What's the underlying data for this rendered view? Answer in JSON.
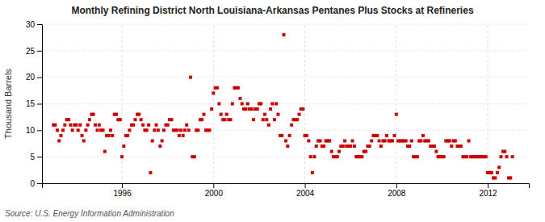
{
  "chart_data": {
    "type": "scatter",
    "title": "Monthly Refining District North Louisiana-Arkansas Pentanes Plus Stocks at Refineries",
    "ylabel": "Thousand Barrels",
    "source": "Source: U.S. Energy Information Administration",
    "color": "#cc0000",
    "marker": "square",
    "grid": true,
    "xlim": [
      1992.5,
      2013.8
    ],
    "xticks": [
      1996,
      2000,
      2004,
      2008,
      2012
    ],
    "ylim": [
      0,
      30
    ],
    "yticks": [
      0,
      5,
      10,
      15,
      20,
      25,
      30
    ],
    "x": [
      1993.0,
      1993.08,
      1993.17,
      1993.25,
      1993.33,
      1993.42,
      1993.5,
      1993.58,
      1993.67,
      1993.75,
      1993.83,
      1993.92,
      1994.0,
      1994.08,
      1994.17,
      1994.25,
      1994.33,
      1994.42,
      1994.5,
      1994.58,
      1994.67,
      1994.75,
      1994.83,
      1994.92,
      1995.0,
      1995.08,
      1995.17,
      1995.25,
      1995.33,
      1995.42,
      1995.5,
      1995.58,
      1995.67,
      1995.75,
      1995.83,
      1995.92,
      1996.0,
      1996.08,
      1996.17,
      1996.25,
      1996.33,
      1996.42,
      1996.5,
      1996.58,
      1996.67,
      1996.75,
      1996.83,
      1996.92,
      1997.0,
      1997.08,
      1997.17,
      1997.25,
      1997.33,
      1997.42,
      1997.5,
      1997.58,
      1997.67,
      1997.75,
      1997.83,
      1997.92,
      1998.0,
      1998.08,
      1998.17,
      1998.25,
      1998.33,
      1998.42,
      1998.5,
      1998.58,
      1998.67,
      1998.75,
      1998.83,
      1998.92,
      1999.0,
      1999.08,
      1999.17,
      1999.25,
      1999.33,
      1999.42,
      1999.5,
      1999.58,
      1999.67,
      1999.75,
      1999.83,
      1999.92,
      2000.0,
      2000.08,
      2000.17,
      2000.25,
      2000.33,
      2000.42,
      2000.5,
      2000.58,
      2000.67,
      2000.75,
      2000.83,
      2000.92,
      2001.0,
      2001.08,
      2001.17,
      2001.25,
      2001.33,
      2001.42,
      2001.5,
      2001.58,
      2001.67,
      2001.75,
      2001.83,
      2001.92,
      2002.0,
      2002.08,
      2002.17,
      2002.25,
      2002.33,
      2002.42,
      2002.5,
      2002.58,
      2002.67,
      2002.75,
      2002.83,
      2002.92,
      2003.0,
      2003.08,
      2003.17,
      2003.25,
      2003.33,
      2003.42,
      2003.5,
      2003.58,
      2003.67,
      2003.75,
      2003.83,
      2003.92,
      2004.0,
      2004.08,
      2004.17,
      2004.25,
      2004.33,
      2004.42,
      2004.5,
      2004.58,
      2004.67,
      2004.75,
      2004.83,
      2004.92,
      2005.0,
      2005.08,
      2005.17,
      2005.25,
      2005.33,
      2005.42,
      2005.5,
      2005.58,
      2005.67,
      2005.75,
      2005.83,
      2005.92,
      2006.0,
      2006.08,
      2006.17,
      2006.25,
      2006.33,
      2006.42,
      2006.5,
      2006.58,
      2006.67,
      2006.75,
      2006.83,
      2006.92,
      2007.0,
      2007.08,
      2007.17,
      2007.25,
      2007.33,
      2007.42,
      2007.5,
      2007.58,
      2007.67,
      2007.75,
      2007.83,
      2007.92,
      2008.0,
      2008.08,
      2008.17,
      2008.25,
      2008.33,
      2008.42,
      2008.5,
      2008.58,
      2008.67,
      2008.75,
      2008.83,
      2008.92,
      2009.0,
      2009.08,
      2009.17,
      2009.25,
      2009.33,
      2009.42,
      2009.5,
      2009.58,
      2009.67,
      2009.75,
      2009.83,
      2009.92,
      2010.0,
      2010.08,
      2010.17,
      2010.25,
      2010.33,
      2010.42,
      2010.5,
      2010.58,
      2010.67,
      2010.75,
      2010.83,
      2010.92,
      2011.0,
      2011.08,
      2011.17,
      2011.25,
      2011.33,
      2011.42,
      2011.5,
      2011.58,
      2011.67,
      2011.75,
      2011.83,
      2011.92,
      2012.0,
      2012.08,
      2012.17,
      2012.25,
      2012.33,
      2012.42,
      2012.5,
      2012.58,
      2012.67,
      2012.75,
      2012.83,
      2012.92,
      2013.0,
      2013.08
    ],
    "values": [
      11,
      11,
      10,
      8,
      9,
      10,
      11,
      12,
      12,
      11,
      10,
      11,
      11,
      10,
      11,
      9,
      8,
      10,
      11,
      12,
      13,
      13,
      11,
      10,
      11,
      10,
      10,
      6,
      9,
      9,
      10,
      9,
      13,
      13,
      12,
      12,
      5,
      7,
      9,
      9,
      10,
      11,
      11,
      12,
      13,
      13,
      12,
      11,
      10,
      10,
      11,
      2,
      8,
      10,
      11,
      10,
      7,
      8,
      10,
      11,
      11,
      12,
      12,
      10,
      10,
      10,
      9,
      10,
      9,
      10,
      11,
      10,
      20,
      5,
      5,
      10,
      10,
      12,
      12,
      13,
      10,
      10,
      10,
      14,
      17,
      18,
      18,
      15,
      13,
      12,
      12,
      13,
      12,
      12,
      15,
      18,
      18,
      18,
      16,
      15,
      14,
      14,
      15,
      14,
      14,
      12,
      14,
      14,
      15,
      15,
      12,
      13,
      12,
      11,
      14,
      15,
      12,
      15,
      13,
      9,
      9,
      28,
      8,
      7,
      9,
      11,
      12,
      12,
      12,
      13,
      14,
      14,
      9,
      9,
      8,
      5,
      2,
      5,
      7,
      8,
      8,
      7,
      7,
      8,
      8,
      8,
      6,
      5,
      5,
      5,
      6,
      7,
      7,
      8,
      7,
      7,
      7,
      8,
      7,
      5,
      5,
      5,
      5,
      6,
      6,
      7,
      7,
      8,
      9,
      9,
      9,
      8,
      7,
      8,
      8,
      9,
      8,
      8,
      8,
      9,
      13,
      8,
      8,
      8,
      8,
      8,
      7,
      7,
      8,
      5,
      5,
      5,
      8,
      8,
      9,
      8,
      8,
      8,
      7,
      7,
      7,
      6,
      5,
      5,
      5,
      5,
      8,
      8,
      8,
      7,
      8,
      8,
      7,
      7,
      7,
      5,
      5,
      5,
      8,
      5,
      5,
      5,
      5,
      5,
      5,
      5,
      5,
      5,
      2,
      2,
      2,
      1,
      1,
      2,
      3,
      5,
      6,
      6,
      5,
      1,
      1,
      5
    ]
  }
}
